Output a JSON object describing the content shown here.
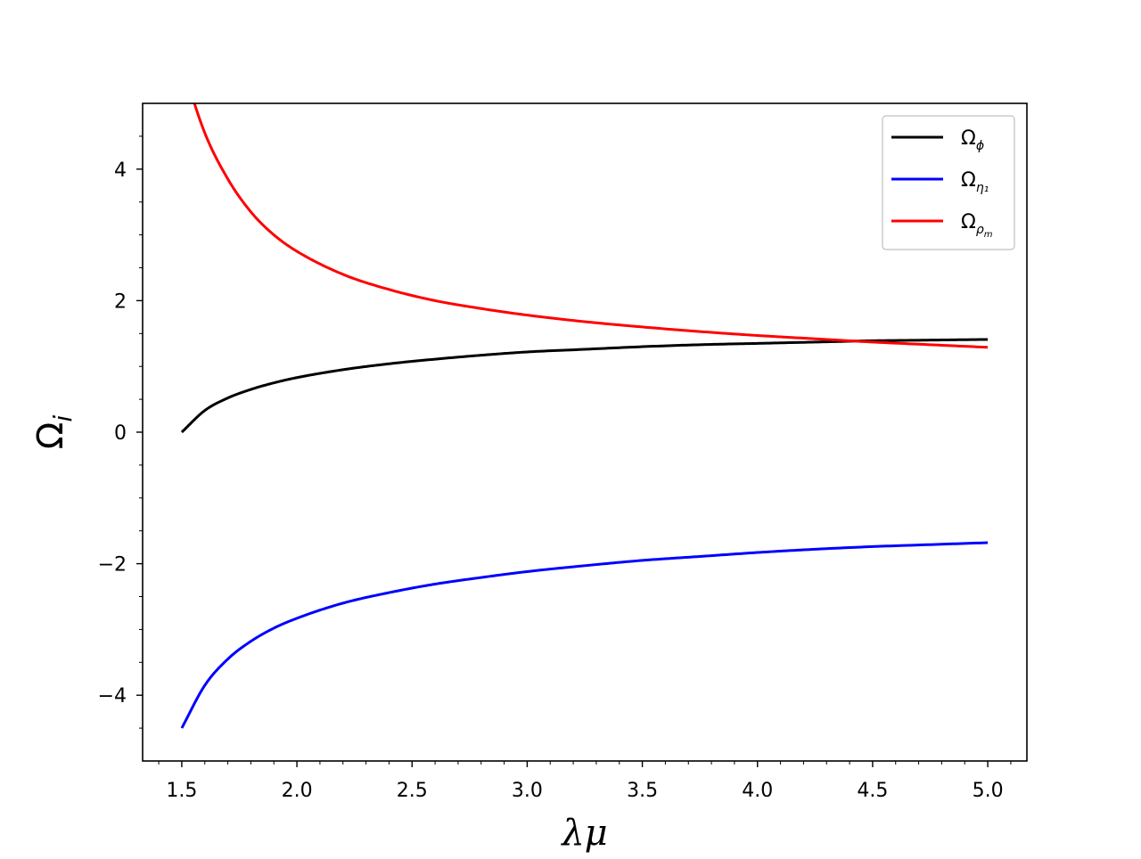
{
  "chart_data": {
    "type": "line",
    "xlabel": "λμ",
    "ylabel": "Ω",
    "ylabel_sub": "i",
    "xlim": [
      1.33,
      5.17
    ],
    "ylim": [
      -5.0,
      5.0
    ],
    "xticks": [
      1.5,
      2.0,
      2.5,
      3.0,
      3.5,
      4.0,
      4.5,
      5.0
    ],
    "xtick_labels": [
      "1.5",
      "2.0",
      "2.5",
      "3.0",
      "3.5",
      "4.0",
      "4.5",
      "5.0"
    ],
    "yticks": [
      -4,
      -2,
      0,
      2,
      4
    ],
    "ytick_labels": [
      "−4",
      "−2",
      "0",
      "2",
      "4"
    ],
    "grid": false,
    "legend_position": "top-right",
    "x": [
      1.5,
      1.6,
      1.7,
      1.8,
      1.9,
      2.0,
      2.2,
      2.4,
      2.6,
      2.8,
      3.0,
      3.25,
      3.5,
      3.75,
      4.0,
      4.25,
      4.5,
      4.75,
      5.0
    ],
    "series": [
      {
        "name": "Ω",
        "name_sub": "ϕ",
        "color": "#000000",
        "values": [
          0.0,
          0.33,
          0.52,
          0.65,
          0.75,
          0.83,
          0.95,
          1.04,
          1.11,
          1.17,
          1.22,
          1.26,
          1.3,
          1.33,
          1.35,
          1.37,
          1.39,
          1.4,
          1.41
        ]
      },
      {
        "name": "Ω",
        "name_sub": "η₁",
        "color": "#0000ff",
        "values": [
          -4.5,
          -3.85,
          -3.45,
          -3.18,
          -2.98,
          -2.83,
          -2.6,
          -2.44,
          -2.31,
          -2.21,
          -2.12,
          -2.03,
          -1.95,
          -1.89,
          -1.83,
          -1.78,
          -1.74,
          -1.71,
          -1.68
        ]
      },
      {
        "name": "Ω",
        "name_sub": "ρ",
        "name_subsub": "m",
        "color": "#ff0000",
        "values": [
          5.6,
          4.55,
          3.85,
          3.35,
          3.0,
          2.75,
          2.4,
          2.17,
          2.0,
          1.88,
          1.78,
          1.68,
          1.6,
          1.53,
          1.47,
          1.42,
          1.37,
          1.33,
          1.29
        ]
      }
    ]
  }
}
